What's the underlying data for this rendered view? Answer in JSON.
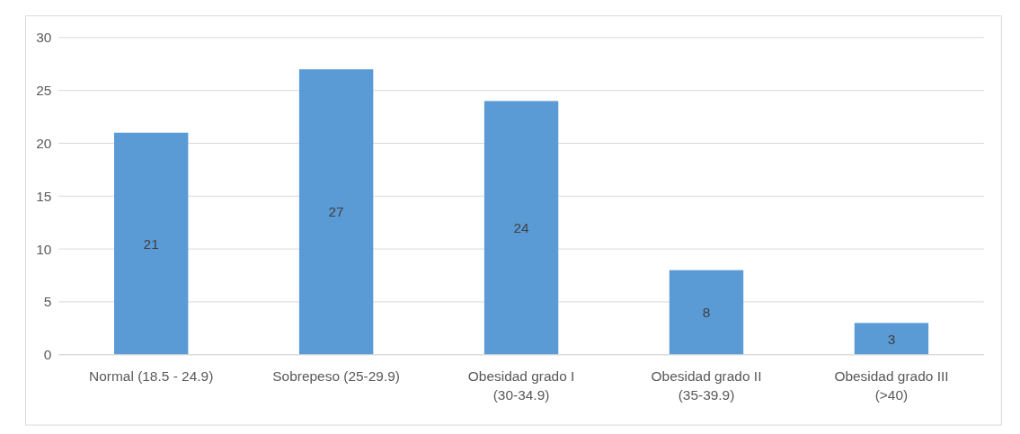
{
  "chart_data": {
    "type": "bar",
    "categories": [
      "Normal (18.5 - 24.9)",
      "Sobrepeso (25-29.9)",
      "Obesidad grado I (30-34.9)",
      "Obesidad grado II (35-39.9)",
      "Obesidad grado III (>40)"
    ],
    "values": [
      21,
      27,
      24,
      8,
      3
    ],
    "color": "#5b9bd5",
    "ylim": [
      0,
      30
    ],
    "yticks": [
      0,
      5,
      10,
      15,
      20,
      25,
      30
    ],
    "grid": "y",
    "data_labels": true
  }
}
